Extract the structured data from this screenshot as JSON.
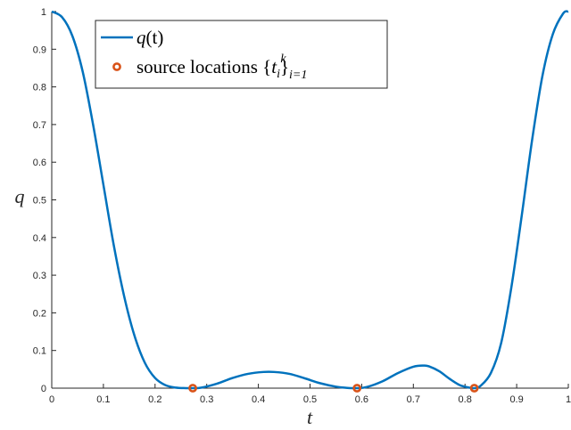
{
  "chart_data": {
    "type": "line",
    "xlabel": "t",
    "ylabel": "q",
    "xlim": [
      0,
      1
    ],
    "ylim": [
      0,
      1
    ],
    "x_ticks": [
      "0",
      "0.1",
      "0.2",
      "0.3",
      "0.4",
      "0.5",
      "0.6",
      "0.7",
      "0.8",
      "0.9",
      "1"
    ],
    "y_ticks": [
      "0",
      "0.1",
      "0.2",
      "0.3",
      "0.4",
      "0.5",
      "0.6",
      "0.7",
      "0.8",
      "0.9",
      "1"
    ],
    "grid": false,
    "legend_position": "top-left",
    "colors": {
      "curve": "#0072BD",
      "markers": "#D95319",
      "axes": "#262626"
    },
    "series": [
      {
        "name": "q(t)",
        "style": "line",
        "x": [
          0,
          0.02,
          0.04,
          0.06,
          0.08,
          0.1,
          0.12,
          0.14,
          0.16,
          0.18,
          0.2,
          0.22,
          0.24,
          0.26,
          0.273,
          0.29,
          0.32,
          0.35,
          0.38,
          0.41,
          0.43,
          0.46,
          0.49,
          0.52,
          0.55,
          0.57,
          0.591,
          0.61,
          0.64,
          0.67,
          0.7,
          0.72,
          0.73,
          0.75,
          0.77,
          0.79,
          0.81,
          0.818,
          0.83,
          0.85,
          0.87,
          0.89,
          0.91,
          0.93,
          0.95,
          0.97,
          0.99,
          1.0
        ],
        "y": [
          1.0,
          0.985,
          0.935,
          0.84,
          0.7,
          0.54,
          0.38,
          0.245,
          0.14,
          0.068,
          0.027,
          0.008,
          0.0015,
          0.0001,
          0.0,
          0.0015,
          0.012,
          0.027,
          0.038,
          0.043,
          0.043,
          0.038,
          0.026,
          0.013,
          0.004,
          0.001,
          0.0,
          0.003,
          0.018,
          0.04,
          0.057,
          0.06,
          0.058,
          0.045,
          0.025,
          0.008,
          0.001,
          0.0,
          0.006,
          0.04,
          0.12,
          0.27,
          0.46,
          0.66,
          0.83,
          0.94,
          0.995,
          1.0
        ]
      },
      {
        "name": "source locations {t_i}_{i=1}^k",
        "style": "markers",
        "x": [
          0.273,
          0.591,
          0.818
        ],
        "y": [
          0,
          0,
          0
        ]
      }
    ]
  },
  "legend": {
    "entry1": {
      "label": "q",
      "suffix": "(t)"
    },
    "entry2": {
      "text": "source locations {",
      "var": "t",
      "sub_i": "i",
      "close": "}",
      "subscript": "i=1",
      "superscript": "k"
    }
  }
}
